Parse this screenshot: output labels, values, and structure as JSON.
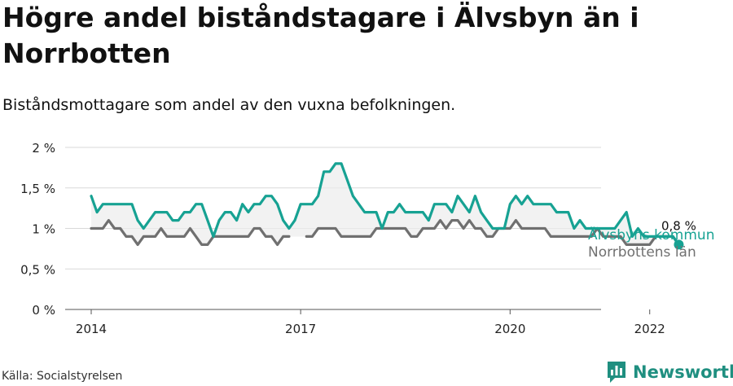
{
  "title": "Högre andel biståndstagare i Älvsbyn än i Norrbotten",
  "subtitle": "Biståndsmottagare som andel av den vuxna befolkningen.",
  "source": "Källa: Socialstyrelsen",
  "brand": {
    "name": "Newsworthy",
    "color": "#1f8f80"
  },
  "chart_data": {
    "type": "line",
    "x_start": "2014-01",
    "x_ticks": [
      "2014",
      "2017",
      "2020",
      "2022"
    ],
    "y_ticks": [
      "0 %",
      "0,5 %",
      "1 %",
      "1,5 %",
      "2 %"
    ],
    "ylim": [
      0,
      2
    ],
    "grid": true,
    "end_label": "0,8 %",
    "series": [
      {
        "name": "Älvsbyns kommun",
        "color": "#17a293",
        "values": [
          1.4,
          1.2,
          1.3,
          1.3,
          1.3,
          1.3,
          1.3,
          1.3,
          1.1,
          1.0,
          1.1,
          1.2,
          1.2,
          1.2,
          1.1,
          1.1,
          1.2,
          1.2,
          1.3,
          1.3,
          1.1,
          0.9,
          1.1,
          1.2,
          1.2,
          1.1,
          1.3,
          1.2,
          1.3,
          1.3,
          1.4,
          1.4,
          1.3,
          1.1,
          1.0,
          1.1,
          1.3,
          1.3,
          1.3,
          1.4,
          1.7,
          1.7,
          1.8,
          1.8,
          1.6,
          1.4,
          1.3,
          1.2,
          1.2,
          1.2,
          1.0,
          1.2,
          1.2,
          1.3,
          1.2,
          1.2,
          1.2,
          1.2,
          1.1,
          1.3,
          1.3,
          1.3,
          1.2,
          1.4,
          1.3,
          1.2,
          1.4,
          1.2,
          1.1,
          1.0,
          1.0,
          1.0,
          1.3,
          1.4,
          1.3,
          1.4,
          1.3,
          1.3,
          1.3,
          1.3,
          1.2,
          1.2,
          1.2,
          1.0,
          1.1,
          1.0,
          1.0,
          1.0,
          1.0,
          1.0,
          1.0,
          1.1,
          1.2,
          0.9,
          1.0,
          0.9,
          0.9,
          0.9,
          0.9,
          0.9,
          0.9,
          0.8
        ]
      },
      {
        "name": "Norrbottens län",
        "color": "#707070",
        "values": [
          1.0,
          1.0,
          1.0,
          1.1,
          1.0,
          1.0,
          0.9,
          0.9,
          0.8,
          0.9,
          0.9,
          0.9,
          1.0,
          0.9,
          0.9,
          0.9,
          0.9,
          1.0,
          0.9,
          0.8,
          0.8,
          0.9,
          0.9,
          0.9,
          0.9,
          0.9,
          0.9,
          0.9,
          1.0,
          1.0,
          0.9,
          0.9,
          0.8,
          0.9,
          0.9,
          null,
          null,
          0.9,
          0.9,
          1.0,
          1.0,
          1.0,
          1.0,
          0.9,
          0.9,
          0.9,
          0.9,
          0.9,
          0.9,
          1.0,
          1.0,
          1.0,
          1.0,
          1.0,
          1.0,
          0.9,
          0.9,
          1.0,
          1.0,
          1.0,
          1.1,
          1.0,
          1.1,
          1.1,
          1.0,
          1.1,
          1.0,
          1.0,
          0.9,
          0.9,
          1.0,
          1.0,
          1.0,
          1.1,
          1.0,
          1.0,
          1.0,
          1.0,
          1.0,
          0.9,
          0.9,
          0.9,
          0.9,
          0.9,
          0.9,
          0.9,
          0.9,
          1.0,
          0.9,
          0.9,
          0.9,
          0.9,
          0.8,
          0.8,
          0.8,
          0.8,
          0.8,
          0.9,
          0.9,
          0.9,
          0.9,
          0.8
        ]
      }
    ]
  }
}
